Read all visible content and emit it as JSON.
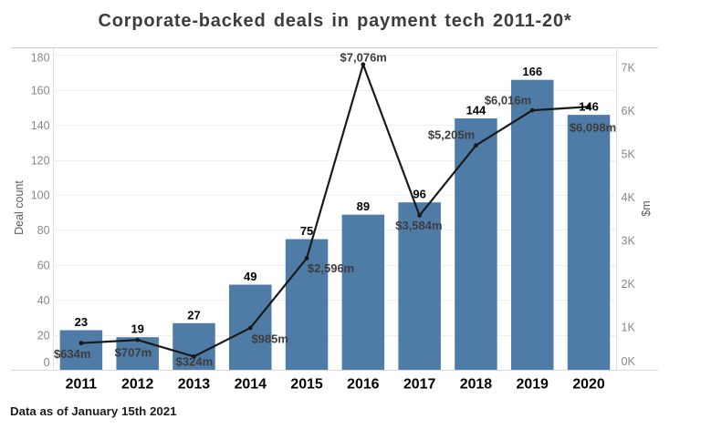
{
  "title": "Corporate-backed deals in payment tech 2011-20*",
  "footnote": "Data as of January 15th 2021",
  "chart_data": {
    "type": "combo-bar-line",
    "categories": [
      "2011",
      "2012",
      "2013",
      "2014",
      "2015",
      "2016",
      "2017",
      "2018",
      "2019",
      "2020"
    ],
    "series": [
      {
        "name": "Deal count",
        "type": "bar",
        "values": [
          23,
          19,
          27,
          49,
          75,
          89,
          96,
          144,
          166,
          146
        ],
        "labels": [
          "23",
          "19",
          "27",
          "49",
          "75",
          "89",
          "96",
          "144",
          "166",
          "146"
        ],
        "color": "#4e7ca6"
      },
      {
        "name": "$m",
        "type": "line",
        "values": [
          634,
          707,
          324,
          985,
          2596,
          7076,
          3584,
          5205,
          6016,
          6098
        ],
        "labels": [
          "$634m",
          "$707m",
          "$324m",
          "$985m",
          "$2,596m",
          "$7,076m",
          "$3,584m",
          "$5,205m",
          "$6,016m",
          "$6,098m"
        ],
        "color": "#1a1a1a"
      }
    ],
    "left_axis": {
      "title": "Deal count",
      "min": 0,
      "max": 180,
      "tick_step": 20,
      "ticks": [
        "0",
        "20",
        "40",
        "60",
        "80",
        "100",
        "120",
        "140",
        "160",
        "180"
      ]
    },
    "right_axis": {
      "title": "$m",
      "min": 0,
      "max": 7000,
      "tick_step": 1000,
      "ticks": [
        "0K",
        "1K",
        "2K",
        "3K",
        "4K",
        "5K",
        "6K",
        "7K"
      ]
    },
    "grid": "horizontal",
    "legend": "none",
    "colors": {
      "bar": "#4e7ca6",
      "line": "#1a1a1a",
      "grid": "#f0f0f0",
      "frame": "#c9c9c9",
      "baseline": "#d9d9d9",
      "axis_line": "#e0e0e0",
      "tick_label": "#888888",
      "bar_label": "#000000",
      "line_label": "#3d3d3d",
      "category_label": "#000000"
    }
  }
}
